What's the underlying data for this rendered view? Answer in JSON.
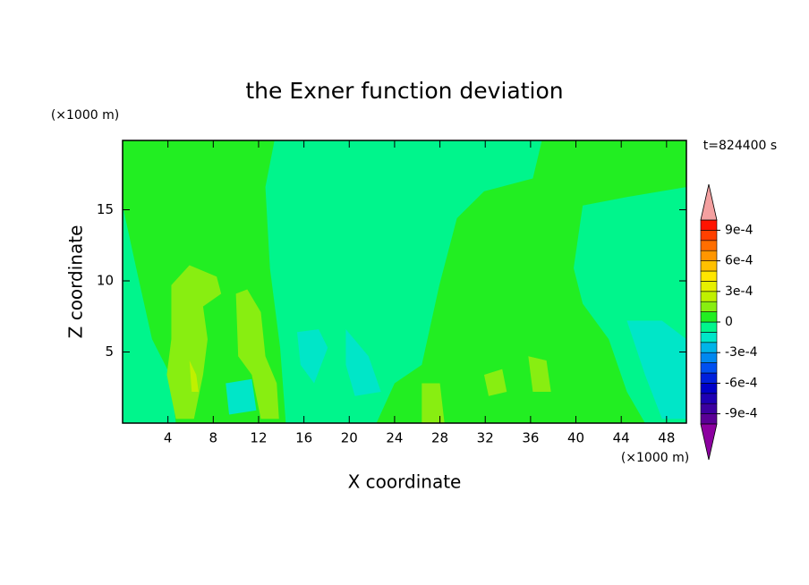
{
  "chart_data": {
    "type": "contour",
    "title": "the Exner function deviation",
    "x_label": "X coordinate",
    "y_label": "Z coordinate",
    "x_unit": "(×1000 m)",
    "y_unit": "(×1000 m)",
    "time_label": "t=824400 s",
    "xlim": [
      0,
      49.75
    ],
    "ylim": [
      0,
      19.875
    ],
    "xticks": [
      4,
      8,
      12,
      16,
      20,
      24,
      28,
      32,
      36,
      40,
      44,
      48
    ],
    "yticks": [
      5,
      10,
      15
    ],
    "levels": [
      -0.001,
      -0.0009,
      -0.0008,
      -0.0007,
      -0.0006,
      -0.0005,
      -0.0004,
      -0.0003,
      -0.0002,
      -0.0001,
      0,
      0.0001,
      0.0002,
      0.0003,
      0.0004,
      0.0005,
      0.0006,
      0.0007,
      0.0008,
      0.0009,
      0.001
    ],
    "colors": [
      "#5a0096",
      "#3c00a0",
      "#1e00b4",
      "#0000c8",
      "#0020dc",
      "#0050f0",
      "#0088f0",
      "#00b4e8",
      "#00e6c8",
      "#00f58c",
      "#22ee22",
      "#88ee11",
      "#c0f000",
      "#e6f000",
      "#ffe600",
      "#ffc000",
      "#ff9600",
      "#ff6e00",
      "#ff4000",
      "#ff1400"
    ],
    "under_color": "#8c00a0",
    "over_color": "#f4a0a0",
    "colorbar_ticks": [
      {
        "value": 0.0009,
        "label": "9e-4"
      },
      {
        "value": 0.0006,
        "label": "6e-4"
      },
      {
        "value": 0.0003,
        "label": "3e-4"
      },
      0,
      {
        "value": -0.0003,
        "label": "-3e-4"
      },
      {
        "value": -0.0006,
        "label": "-6e-4"
      },
      {
        "value": -0.0009,
        "label": "-9e-4"
      }
    ],
    "background_level": -0.0001,
    "regions": [
      {
        "level": 0,
        "x": [
          0,
          13.4,
          12.6,
          13.0,
          13.9,
          14.4,
          0
        ],
        "z": [
          19.875,
          19.875,
          16.6,
          10.9,
          5.3,
          0,
          0
        ]
      },
      {
        "level": -0.0001,
        "x": [
          0,
          1.2,
          2.6,
          4.2,
          4.7,
          0
        ],
        "z": [
          15.3,
          10.9,
          5.9,
          3.4,
          0,
          0
        ]
      },
      {
        "level": 0.0001,
        "x": [
          4.3,
          5.9,
          8.3,
          8.7,
          7.1,
          7.5,
          7.1,
          6.3,
          4.7,
          3.9,
          4.3
        ],
        "z": [
          9.7,
          11.1,
          10.3,
          9.1,
          8.2,
          5.9,
          3.4,
          0.3,
          0.3,
          3.4,
          5.9
        ]
      },
      {
        "level": 0.0001,
        "x": [
          10.0,
          11.0,
          12.2,
          12.6,
          13.6,
          13.8,
          12.2,
          11.4,
          10.2
        ],
        "z": [
          9.1,
          9.4,
          7.8,
          4.7,
          2.8,
          0.3,
          0.3,
          3.4,
          4.7
        ]
      },
      {
        "level": 0.0002,
        "x": [
          5.9,
          6.5,
          6.7,
          6.1
        ],
        "z": [
          4.4,
          3.4,
          2.2,
          2.2
        ]
      },
      {
        "level": -0.0002,
        "x": [
          9.1,
          11.4,
          11.8,
          9.4
        ],
        "z": [
          2.8,
          3.1,
          0.9,
          0.6
        ]
      },
      {
        "level": -0.0002,
        "x": [
          15.4,
          17.3,
          18.1,
          16.9,
          15.7
        ],
        "z": [
          6.4,
          6.6,
          5.3,
          2.8,
          4.1
        ]
      },
      {
        "level": -0.0002,
        "x": [
          19.7,
          21.7,
          22.8,
          20.5,
          19.7
        ],
        "z": [
          6.6,
          4.7,
          2.2,
          1.9,
          4.1
        ]
      },
      {
        "level": 0,
        "x": [
          37.0,
          49.75,
          49.75,
          44.5,
          40.6,
          39.8,
          40.6,
          42.9,
          44.5,
          46.1,
          22.4,
          24.0,
          26.4,
          27.95,
          29.5,
          31.9,
          36.2
        ],
        "z": [
          19.875,
          19.875,
          16.6,
          15.9,
          15.3,
          10.9,
          8.4,
          5.9,
          2.2,
          0,
          0,
          2.8,
          4.1,
          9.7,
          14.4,
          16.3,
          17.2
        ]
      },
      {
        "level": -0.0002,
        "x": [
          44.5,
          47.6,
          49.75,
          49.75,
          47.6,
          46.1
        ],
        "z": [
          7.2,
          7.2,
          5.9,
          0.3,
          0.3,
          3.4
        ]
      },
      {
        "level": 0.0001,
        "x": [
          26.4,
          28.0,
          28.4,
          26.4
        ],
        "z": [
          2.8,
          2.8,
          0,
          0
        ]
      },
      {
        "level": 0.0001,
        "x": [
          35.8,
          37.4,
          37.8,
          36.2
        ],
        "z": [
          4.7,
          4.4,
          2.2,
          2.2
        ]
      },
      {
        "level": 0.0001,
        "x": [
          31.9,
          33.5,
          33.9,
          32.3
        ],
        "z": [
          3.4,
          3.8,
          2.2,
          1.9
        ]
      }
    ]
  }
}
